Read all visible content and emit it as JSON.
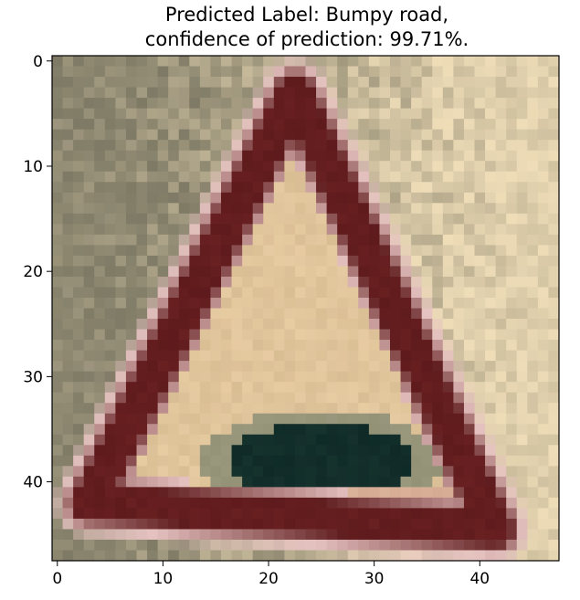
{
  "chart_data": {
    "type": "heatmap",
    "title_lines": [
      "Predicted Label: Bumpy road,",
      "confidence of prediction: 99.71%."
    ],
    "predicted_label": "Bumpy road",
    "confidence_percent": 99.71,
    "image_size": [
      48,
      48
    ],
    "xlim": [
      -0.5,
      47.5
    ],
    "ylim": [
      47.5,
      -0.5
    ],
    "x_ticks": [
      0,
      10,
      20,
      30,
      40
    ],
    "y_ticks": [
      0,
      10,
      20,
      30,
      40
    ],
    "grid": false,
    "colors": {
      "background_left": "#8f8a72",
      "background_right": "#eddcb6",
      "sign_border": "#5e1a1c",
      "sign_outer_edge": "#e5c2c0",
      "sign_inner": "#e2c7a2",
      "sign_glyph": "#0f2a27",
      "sign_base": "#c98b8e"
    }
  }
}
